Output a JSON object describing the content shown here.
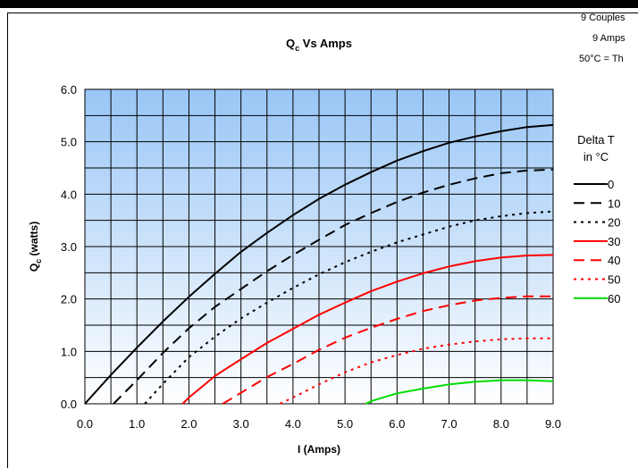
{
  "header_notes": {
    "line1": "9 Couples",
    "line2": "9 Amps",
    "line3": "50°C = Th"
  },
  "chart_data": {
    "type": "line",
    "title_main": "Q",
    "title_sub": "c",
    "title_rest": " Vs Amps",
    "xlabel": "I (Amps)",
    "ylabel_main": "Q",
    "ylabel_sub": "c",
    "ylabel_rest": " (watts)",
    "xlim": [
      0,
      9
    ],
    "ylim": [
      0,
      6
    ],
    "x_ticks": [
      "0.0",
      "1.0",
      "2.0",
      "3.0",
      "4.0",
      "5.0",
      "6.0",
      "7.0",
      "8.0",
      "9.0"
    ],
    "y_ticks": [
      "0.0",
      "1.0",
      "2.0",
      "3.0",
      "4.0",
      "5.0",
      "6.0"
    ],
    "grid": true,
    "background_gradient": [
      "#99c6f6",
      "#ffffff"
    ],
    "legend_title_line1": "Delta T",
    "legend_title_line2": "in °C",
    "legend_position": "right",
    "series": [
      {
        "name": "0",
        "color": "#000000",
        "dash": "solid",
        "width": 2,
        "x": [
          0,
          0.5,
          1,
          1.5,
          2,
          2.5,
          3,
          3.5,
          4,
          4.5,
          5,
          5.5,
          6,
          6.5,
          7,
          7.5,
          8,
          8.5,
          9
        ],
        "y": [
          0,
          0.55,
          1.07,
          1.57,
          2.04,
          2.48,
          2.9,
          3.26,
          3.6,
          3.91,
          4.18,
          4.42,
          4.64,
          4.82,
          4.98,
          5.1,
          5.2,
          5.28,
          5.32
        ]
      },
      {
        "name": "10",
        "color": "#000000",
        "dash": "long",
        "width": 2,
        "x": [
          0.55,
          1,
          1.5,
          2,
          2.5,
          3,
          3.5,
          4,
          4.5,
          5,
          5.5,
          6,
          6.5,
          7,
          7.5,
          8,
          8.5,
          9
        ],
        "y": [
          0,
          0.45,
          0.97,
          1.44,
          1.85,
          2.19,
          2.53,
          2.84,
          3.13,
          3.41,
          3.64,
          3.85,
          4.03,
          4.18,
          4.3,
          4.4,
          4.45,
          4.47
        ]
      },
      {
        "name": "20",
        "color": "#000000",
        "dash": "dot",
        "width": 2,
        "x": [
          1.15,
          1.5,
          2,
          2.5,
          3,
          3.5,
          4,
          4.5,
          5,
          5.5,
          6,
          6.5,
          7,
          7.5,
          8,
          8.5,
          9
        ],
        "y": [
          0,
          0.38,
          0.89,
          1.28,
          1.63,
          1.93,
          2.21,
          2.47,
          2.7,
          2.9,
          3.08,
          3.23,
          3.38,
          3.5,
          3.58,
          3.64,
          3.67
        ]
      },
      {
        "name": "30",
        "color": "#ff0000",
        "dash": "solid",
        "width": 2,
        "x": [
          1.88,
          2,
          2.5,
          3,
          3.5,
          4,
          4.5,
          5,
          5.5,
          6,
          6.5,
          7,
          7.5,
          8,
          8.5,
          9
        ],
        "y": [
          0,
          0.12,
          0.53,
          0.85,
          1.16,
          1.43,
          1.7,
          1.93,
          2.15,
          2.33,
          2.49,
          2.62,
          2.72,
          2.79,
          2.83,
          2.84
        ]
      },
      {
        "name": "40",
        "color": "#ff0000",
        "dash": "long",
        "width": 2,
        "x": [
          2.65,
          3,
          3.5,
          4,
          4.5,
          5,
          5.5,
          6,
          6.5,
          7,
          7.5,
          8,
          8.5,
          9
        ],
        "y": [
          0,
          0.21,
          0.51,
          0.76,
          1.03,
          1.26,
          1.45,
          1.62,
          1.77,
          1.88,
          1.97,
          2.02,
          2.05,
          2.05
        ]
      },
      {
        "name": "50",
        "color": "#ff0000",
        "dash": "dot",
        "width": 2,
        "x": [
          3.75,
          4,
          4.5,
          5,
          5.5,
          6,
          6.5,
          7,
          7.5,
          8,
          8.5,
          9
        ],
        "y": [
          0,
          0.12,
          0.37,
          0.6,
          0.79,
          0.93,
          1.05,
          1.13,
          1.19,
          1.23,
          1.25,
          1.25
        ]
      },
      {
        "name": "60",
        "color": "#00dd00",
        "dash": "solid",
        "width": 2,
        "x": [
          5.4,
          5.5,
          6,
          6.5,
          7,
          7.5,
          8,
          8.5,
          9
        ],
        "y": [
          0,
          0.05,
          0.2,
          0.29,
          0.37,
          0.42,
          0.45,
          0.45,
          0.43
        ]
      }
    ]
  }
}
